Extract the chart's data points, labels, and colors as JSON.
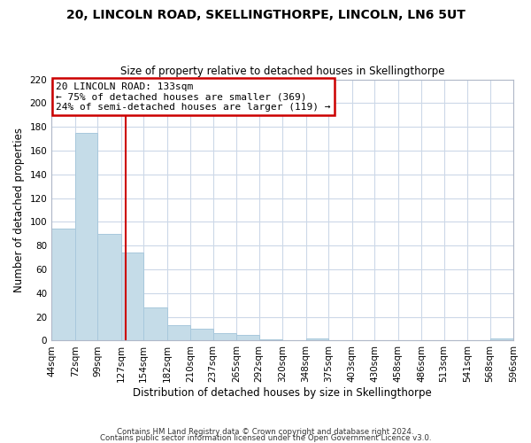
{
  "title": "20, LINCOLN ROAD, SKELLINGTHORPE, LINCOLN, LN6 5UT",
  "subtitle": "Size of property relative to detached houses in Skellingthorpe",
  "xlabel": "Distribution of detached houses by size in Skellingthorpe",
  "ylabel": "Number of detached properties",
  "bar_color": "#c5dce8",
  "bar_edge_color": "#a8c8dc",
  "vline_x": 133,
  "vline_color": "#cc0000",
  "bin_edges": [
    44,
    72,
    99,
    127,
    154,
    182,
    210,
    237,
    265,
    292,
    320,
    348,
    375,
    403,
    430,
    458,
    486,
    513,
    541,
    568,
    596
  ],
  "bin_labels": [
    "44sqm",
    "72sqm",
    "99sqm",
    "127sqm",
    "154sqm",
    "182sqm",
    "210sqm",
    "237sqm",
    "265sqm",
    "292sqm",
    "320sqm",
    "348sqm",
    "375sqm",
    "403sqm",
    "430sqm",
    "458sqm",
    "486sqm",
    "513sqm",
    "541sqm",
    "568sqm",
    "596sqm"
  ],
  "counts": [
    94,
    175,
    90,
    74,
    28,
    13,
    10,
    6,
    5,
    1,
    0,
    2,
    0,
    0,
    0,
    0,
    0,
    0,
    0,
    2
  ],
  "ylim": [
    0,
    220
  ],
  "yticks": [
    0,
    20,
    40,
    60,
    80,
    100,
    120,
    140,
    160,
    180,
    200,
    220
  ],
  "annotation_title": "20 LINCOLN ROAD: 133sqm",
  "annotation_line1": "← 75% of detached houses are smaller (369)",
  "annotation_line2": "24% of semi-detached houses are larger (119) →",
  "annotation_box_color": "#ffffff",
  "annotation_box_edge": "#cc0000",
  "footer1": "Contains HM Land Registry data © Crown copyright and database right 2024.",
  "footer2": "Contains public sector information licensed under the Open Government Licence v3.0.",
  "background_color": "#ffffff",
  "grid_color": "#ccd8e8"
}
